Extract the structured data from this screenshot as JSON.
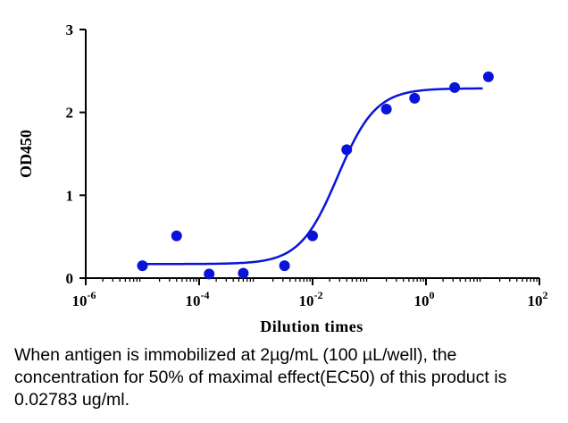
{
  "chart_data": {
    "type": "scatter",
    "title": "",
    "xlabel": "Dilution times",
    "ylabel": "OD450",
    "x_scale": "log",
    "xlim": [
      1e-06,
      100
    ],
    "ylim": [
      0,
      3
    ],
    "x_ticks": [
      {
        "value": 1e-06,
        "base": "10",
        "exp": "-6"
      },
      {
        "value": 0.0001,
        "base": "10",
        "exp": "-4"
      },
      {
        "value": 0.01,
        "base": "10",
        "exp": "-2"
      },
      {
        "value": 1,
        "base": "10",
        "exp": "0"
      },
      {
        "value": 100,
        "base": "10",
        "exp": "2"
      }
    ],
    "y_ticks": [
      0,
      1,
      2,
      3
    ],
    "grid": false,
    "legend": "none",
    "series": [
      {
        "type": "scatter",
        "x": [
          1e-05,
          4e-05,
          0.00015,
          0.0006,
          0.0032,
          0.01,
          0.04,
          0.2,
          0.63,
          3.2,
          12.6
        ],
        "y": [
          0.15,
          0.51,
          0.05,
          0.06,
          0.15,
          0.51,
          1.55,
          2.04,
          2.17,
          2.3,
          2.43
        ]
      },
      {
        "type": "line",
        "model": "4PL",
        "bottom": 0.17,
        "top": 2.29,
        "ec50": 0.02783,
        "hill": 1.3,
        "x_range": [
          1e-05,
          10
        ]
      }
    ],
    "color": "#0a14d9"
  },
  "caption": "When antigen is immobilized at 2µg/mL (100 µL/well), the concentration for 50% of maximal effect(EC50) of this product is 0.02783 ug/ml."
}
